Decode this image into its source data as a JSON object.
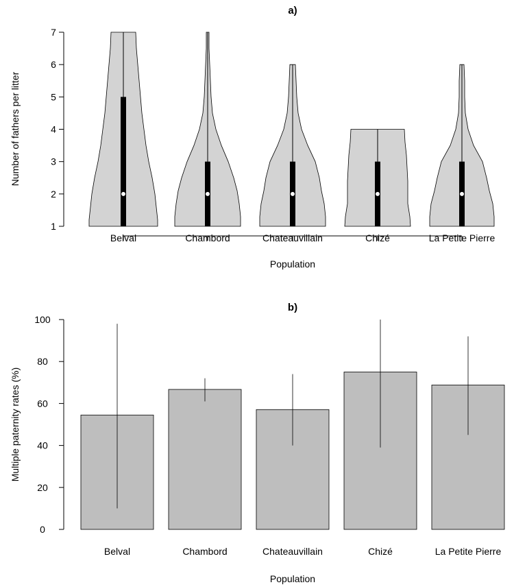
{
  "chart_data": [
    {
      "type": "violin",
      "title": "a)",
      "xlabel": "Population",
      "ylabel": "Number of fathers per litter",
      "ylim": [
        1,
        7
      ],
      "yticks": [
        "1",
        "2",
        "3",
        "4",
        "5",
        "6",
        "7"
      ],
      "categories": [
        "Belval",
        "Chambord",
        "Chateauvillain",
        "Chizé",
        "La Petite Pierre"
      ],
      "box": [
        {
          "min": 1,
          "q1": 1,
          "median": 2,
          "q3": 5,
          "max": 7
        },
        {
          "min": 1,
          "q1": 1,
          "median": 2,
          "q3": 3,
          "max": 7
        },
        {
          "min": 1,
          "q1": 1,
          "median": 2,
          "q3": 3,
          "max": 6
        },
        {
          "min": 1,
          "q1": 1,
          "median": 2,
          "q3": 3,
          "max": 4
        },
        {
          "min": 1,
          "q1": 1,
          "median": 2,
          "q3": 3,
          "max": 6
        }
      ],
      "fill_color": "#d3d3d3"
    },
    {
      "type": "bar",
      "title": "b)",
      "xlabel": "Population",
      "ylabel": "Multiple paternity rates (%)",
      "ylim": [
        0,
        100
      ],
      "yticks": [
        "0",
        "20",
        "40",
        "60",
        "80",
        "100"
      ],
      "categories": [
        "Belval",
        "Chambord",
        "Chateauvillain",
        "Chizé",
        "La Petite Pierre"
      ],
      "values": [
        54.5,
        66.7,
        57.1,
        75.0,
        68.8
      ],
      "ci_low": [
        10,
        61,
        40,
        39,
        45
      ],
      "ci_high": [
        98,
        72,
        74,
        100,
        92
      ],
      "bar_color": "#bebebe"
    }
  ]
}
